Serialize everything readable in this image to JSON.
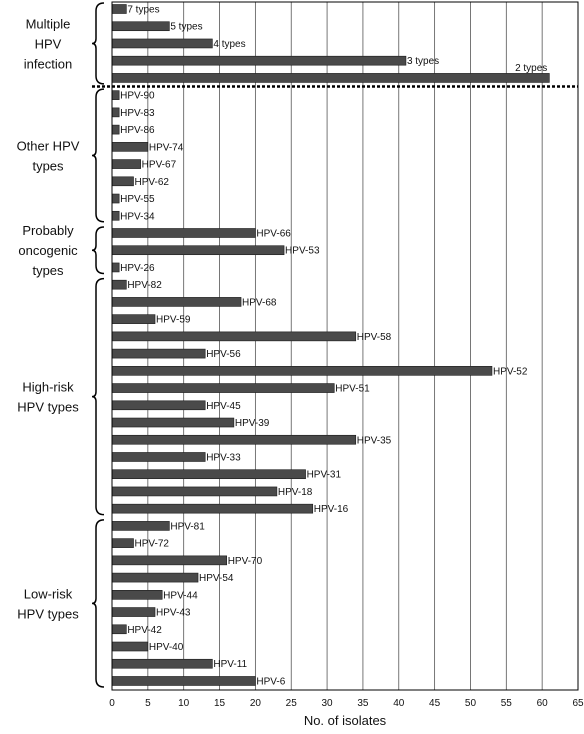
{
  "chart_data": {
    "type": "bar",
    "orientation": "horizontal",
    "xlabel": "No. of isolates",
    "xlim": [
      0,
      65
    ],
    "xticks": [
      0,
      5,
      10,
      15,
      20,
      25,
      30,
      35,
      40,
      45,
      50,
      55,
      60,
      65
    ],
    "grid": "vertical",
    "groups": [
      {
        "label": [
          "Multiple",
          "HPV",
          "infection"
        ],
        "bars": [
          {
            "label": "7 types",
            "value": 2
          },
          {
            "label": "5 types",
            "value": 8
          },
          {
            "label": "4 types",
            "value": 14
          },
          {
            "label": "3 types",
            "value": 41
          },
          {
            "label": "2 types",
            "value": 61
          }
        ]
      },
      {
        "label": [
          "Other HPV",
          "types"
        ],
        "bars": [
          {
            "label": "HPV-90",
            "value": 1
          },
          {
            "label": "HPV-83",
            "value": 1
          },
          {
            "label": "HPV-86",
            "value": 1
          },
          {
            "label": "HPV-74",
            "value": 5
          },
          {
            "label": "HPV-67",
            "value": 4
          },
          {
            "label": "HPV-62",
            "value": 3
          },
          {
            "label": "HPV-55",
            "value": 1
          },
          {
            "label": "HPV-34",
            "value": 1
          }
        ]
      },
      {
        "label": [
          "Probably",
          "oncogenic",
          "types"
        ],
        "bars": [
          {
            "label": "HPV-66",
            "value": 20
          },
          {
            "label": "HPV-53",
            "value": 24
          },
          {
            "label": "HPV-26",
            "value": 1
          }
        ]
      },
      {
        "label": [
          "High-risk",
          "HPV types"
        ],
        "bars": [
          {
            "label": "HPV-82",
            "value": 2
          },
          {
            "label": "HPV-68",
            "value": 18
          },
          {
            "label": "HPV-59",
            "value": 6
          },
          {
            "label": "HPV-58",
            "value": 34
          },
          {
            "label": "HPV-56",
            "value": 13
          },
          {
            "label": "HPV-52",
            "value": 53
          },
          {
            "label": "HPV-51",
            "value": 31
          },
          {
            "label": "HPV-45",
            "value": 13
          },
          {
            "label": "HPV-39",
            "value": 17
          },
          {
            "label": "HPV-35",
            "value": 34
          },
          {
            "label": "HPV-33",
            "value": 13
          },
          {
            "label": "HPV-31",
            "value": 27
          },
          {
            "label": "HPV-18",
            "value": 23
          },
          {
            "label": "HPV-16",
            "value": 28
          }
        ]
      },
      {
        "label": [
          "Low-risk",
          "HPV types"
        ],
        "bars": [
          {
            "label": "HPV-81",
            "value": 8
          },
          {
            "label": "HPV-72",
            "value": 3
          },
          {
            "label": "HPV-70",
            "value": 16
          },
          {
            "label": "HPV-54",
            "value": 12
          },
          {
            "label": "HPV-44",
            "value": 7
          },
          {
            "label": "HPV-43",
            "value": 6
          },
          {
            "label": "HPV-42",
            "value": 2
          },
          {
            "label": "HPV-40",
            "value": 5
          },
          {
            "label": "HPV-11",
            "value": 14
          },
          {
            "label": "HPV-6",
            "value": 20
          }
        ]
      }
    ]
  }
}
